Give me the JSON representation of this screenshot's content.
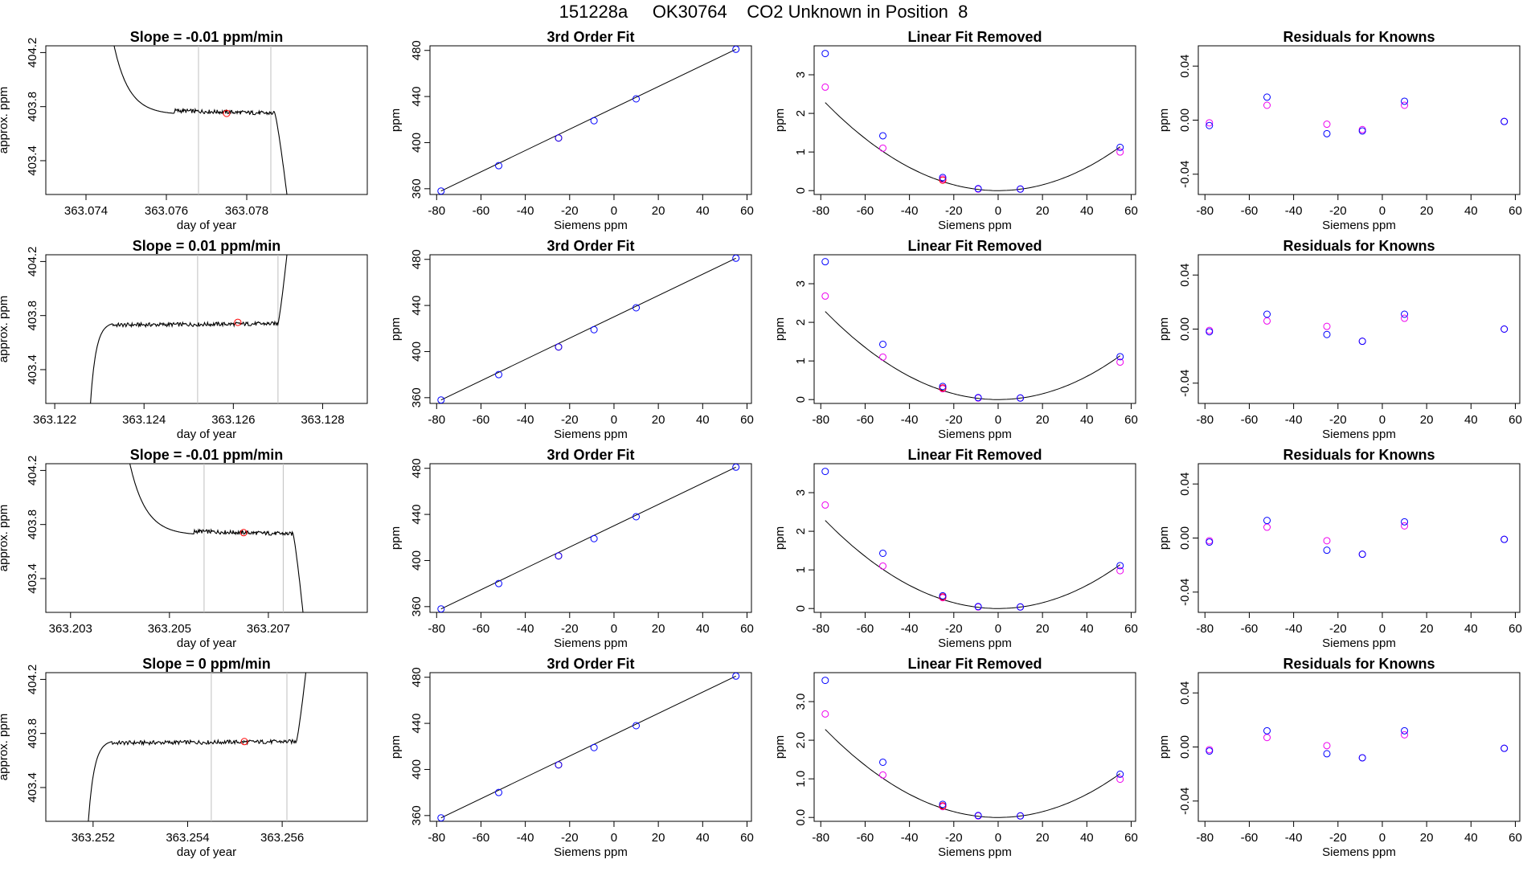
{
  "page_title": "151228a     OK30764    CO2 Unknown in Position  8",
  "colors": {
    "blue": "#0000ff",
    "magenta": "#ee00ee",
    "red": "#ff0000",
    "line": "#000000",
    "gray": "#bfbfbf"
  },
  "chart_data": [
    {
      "type": "line",
      "title": "Slope =  -0.01  ppm/min",
      "xlabel": "day of year",
      "ylabel": "approx. ppm",
      "xlim": [
        363.073,
        363.081
      ],
      "ylim": [
        403.15,
        404.25
      ],
      "xticks": [
        "363.074",
        "363.076",
        "363.078"
      ],
      "xtick_vals": [
        363.074,
        363.076,
        363.078
      ],
      "yticks": [
        "403.4",
        "403.8",
        "404.2"
      ],
      "ytick_vals": [
        403.4,
        403.8,
        404.2
      ],
      "vlines": [
        363.0768,
        363.0786
      ],
      "trace": {
        "t0": 363.0747,
        "t_flat": 363.0762,
        "t_end": 363.0787,
        "t_drop": 363.079,
        "start": 404.25,
        "plateau": 403.75,
        "end": 403.15,
        "direction": "down"
      },
      "marker": {
        "x": 363.0775,
        "y": 403.75
      }
    },
    {
      "type": "scatter",
      "title": "3rd Order Fit",
      "xlabel": "Siemens ppm",
      "ylabel": "ppm",
      "xlim": [
        -83,
        62
      ],
      "ylim": [
        355,
        484
      ],
      "xticks": [
        "-80",
        "-60",
        "-40",
        "-20",
        "0",
        "20",
        "40",
        "60"
      ],
      "xtick_vals": [
        -80,
        -60,
        -40,
        -20,
        0,
        20,
        40,
        60
      ],
      "yticks": [
        "360",
        "400",
        "440",
        "480"
      ],
      "ytick_vals": [
        360,
        400,
        440,
        480
      ],
      "points_blue": [
        [
          -78,
          358
        ],
        [
          -52,
          380
        ],
        [
          -25,
          404
        ],
        [
          -9,
          419
        ],
        [
          10,
          438
        ],
        [
          55,
          481
        ]
      ],
      "points_red": [
        [
          -25,
          404
        ]
      ],
      "fit_line": [
        [
          -78,
          358
        ],
        [
          55,
          481
        ]
      ]
    },
    {
      "type": "scatter",
      "title": "Linear Fit Removed",
      "xlabel": "Siemens ppm",
      "ylabel": "ppm",
      "xlim": [
        -83,
        62
      ],
      "ylim": [
        -0.1,
        3.75
      ],
      "xticks": [
        "-80",
        "-60",
        "-40",
        "-20",
        "0",
        "20",
        "40",
        "60"
      ],
      "xtick_vals": [
        -80,
        -60,
        -40,
        -20,
        0,
        20,
        40,
        60
      ],
      "yticks": [
        "0",
        "1",
        "2",
        "3"
      ],
      "ytick_vals": [
        0,
        1,
        2,
        3
      ],
      "points_blue": [
        [
          -78,
          3.55
        ],
        [
          -52,
          1.42
        ],
        [
          -25,
          0.34
        ],
        [
          -9,
          0.05
        ],
        [
          10,
          0.04
        ],
        [
          55,
          1.12
        ]
      ],
      "points_magenta": [
        [
          -78,
          2.68
        ],
        [
          -52,
          1.1
        ],
        [
          -25,
          0.3
        ],
        [
          -9,
          0.04
        ],
        [
          10,
          0.04
        ],
        [
          55,
          1.0
        ]
      ],
      "points_red": [
        [
          -25,
          0.27
        ]
      ],
      "quad_coef": 0.000375
    },
    {
      "type": "scatter",
      "title": "Residuals for Knowns",
      "xlabel": "Siemens ppm",
      "ylabel": "ppm",
      "xlim": [
        -83,
        62
      ],
      "ylim": [
        -0.055,
        0.055
      ],
      "xticks": [
        "-80",
        "-60",
        "-40",
        "-20",
        "0",
        "20",
        "40",
        "60"
      ],
      "xtick_vals": [
        -80,
        -60,
        -40,
        -20,
        0,
        20,
        40,
        60
      ],
      "yticks": [
        "-0.04",
        "0.00",
        "0.04"
      ],
      "ytick_vals": [
        -0.04,
        0.0,
        0.04
      ],
      "points_blue": [
        [
          -78,
          -0.004
        ],
        [
          -52,
          0.017
        ],
        [
          -25,
          -0.01
        ],
        [
          -9,
          -0.008
        ],
        [
          10,
          0.014
        ],
        [
          55,
          -0.001
        ]
      ],
      "points_magenta": [
        [
          -78,
          -0.002
        ],
        [
          -52,
          0.011
        ],
        [
          -25,
          -0.003
        ],
        [
          -9,
          -0.007
        ],
        [
          10,
          0.011
        ],
        [
          55,
          -0.001
        ]
      ]
    },
    {
      "type": "line",
      "title": "Slope =  0.01  ppm/min",
      "xlabel": "day of year",
      "ylabel": "approx. ppm",
      "xlim": [
        363.1218,
        363.129
      ],
      "ylim": [
        403.15,
        404.25
      ],
      "xticks": [
        "363.122",
        "363.124",
        "363.126",
        "363.128"
      ],
      "xtick_vals": [
        363.122,
        363.124,
        363.126,
        363.128
      ],
      "yticks": [
        "403.4",
        "403.8",
        "404.2"
      ],
      "ytick_vals": [
        403.4,
        403.8,
        404.2
      ],
      "vlines": [
        363.1252,
        363.127
      ],
      "trace": {
        "t0": 363.1228,
        "t_flat": 363.1233,
        "t_end": 363.127,
        "t_drop": 363.1272,
        "start": 403.15,
        "plateau": 403.74,
        "end": 404.25,
        "direction": "up"
      },
      "marker": {
        "x": 363.1261,
        "y": 403.75
      }
    },
    {
      "type": "scatter",
      "title": "3rd Order Fit",
      "xlabel": "Siemens ppm",
      "ylabel": "ppm",
      "xlim": [
        -83,
        62
      ],
      "ylim": [
        355,
        484
      ],
      "xticks": [
        "-80",
        "-60",
        "-40",
        "-20",
        "0",
        "20",
        "40",
        "60"
      ],
      "xtick_vals": [
        -80,
        -60,
        -40,
        -20,
        0,
        20,
        40,
        60
      ],
      "yticks": [
        "360",
        "400",
        "440",
        "480"
      ],
      "ytick_vals": [
        360,
        400,
        440,
        480
      ],
      "points_blue": [
        [
          -78,
          358
        ],
        [
          -52,
          380
        ],
        [
          -25,
          404
        ],
        [
          -9,
          419
        ],
        [
          10,
          438
        ],
        [
          55,
          481
        ]
      ],
      "points_red": [
        [
          -25,
          404
        ]
      ],
      "fit_line": [
        [
          -78,
          358
        ],
        [
          55,
          481
        ]
      ]
    },
    {
      "type": "scatter",
      "title": "Linear Fit Removed",
      "xlabel": "Siemens ppm",
      "ylabel": "ppm",
      "xlim": [
        -83,
        62
      ],
      "ylim": [
        -0.1,
        3.75
      ],
      "xticks": [
        "-80",
        "-60",
        "-40",
        "-20",
        "0",
        "20",
        "40",
        "60"
      ],
      "xtick_vals": [
        -80,
        -60,
        -40,
        -20,
        0,
        20,
        40,
        60
      ],
      "yticks": [
        "0",
        "1",
        "2",
        "3"
      ],
      "ytick_vals": [
        0,
        1,
        2,
        3
      ],
      "points_blue": [
        [
          -78,
          3.57
        ],
        [
          -52,
          1.43
        ],
        [
          -25,
          0.34
        ],
        [
          -9,
          0.05
        ],
        [
          10,
          0.04
        ],
        [
          55,
          1.11
        ]
      ],
      "points_magenta": [
        [
          -78,
          2.68
        ],
        [
          -52,
          1.1
        ],
        [
          -25,
          0.28
        ],
        [
          -9,
          0.04
        ],
        [
          10,
          0.04
        ],
        [
          55,
          0.97
        ]
      ],
      "points_red": [
        [
          -25,
          0.3
        ]
      ],
      "quad_coef": 0.000375
    },
    {
      "type": "scatter",
      "title": "Residuals for Knowns",
      "xlabel": "Siemens ppm",
      "ylabel": "ppm",
      "xlim": [
        -83,
        62
      ],
      "ylim": [
        -0.055,
        0.055
      ],
      "xticks": [
        "-80",
        "-60",
        "-40",
        "-20",
        "0",
        "20",
        "40",
        "60"
      ],
      "xtick_vals": [
        -80,
        -60,
        -40,
        -20,
        0,
        20,
        40,
        60
      ],
      "yticks": [
        "-0.04",
        "0.00",
        "0.04"
      ],
      "ytick_vals": [
        -0.04,
        0.0,
        0.04
      ],
      "points_blue": [
        [
          -78,
          -0.002
        ],
        [
          -52,
          0.011
        ],
        [
          -25,
          -0.004
        ],
        [
          -9,
          -0.009
        ],
        [
          10,
          0.011
        ],
        [
          55,
          0.0
        ]
      ],
      "points_magenta": [
        [
          -78,
          -0.001
        ],
        [
          -52,
          0.006
        ],
        [
          -25,
          0.002
        ],
        [
          -9,
          -0.009
        ],
        [
          10,
          0.008
        ],
        [
          55,
          0.0
        ]
      ]
    },
    {
      "type": "line",
      "title": "Slope =  -0.01  ppm/min",
      "xlabel": "day of year",
      "ylabel": "approx. ppm",
      "xlim": [
        363.2025,
        363.209
      ],
      "ylim": [
        403.15,
        404.25
      ],
      "xticks": [
        "363.203",
        "363.205",
        "363.207"
      ],
      "xtick_vals": [
        363.203,
        363.205,
        363.207
      ],
      "yticks": [
        "403.4",
        "403.8",
        "404.2"
      ],
      "ytick_vals": [
        403.4,
        403.8,
        404.2
      ],
      "vlines": [
        363.2057,
        363.2073
      ],
      "trace": {
        "t0": 363.2042,
        "t_flat": 363.2055,
        "t_end": 363.2075,
        "t_drop": 363.2077,
        "start": 404.25,
        "plateau": 403.73,
        "end": 403.15,
        "direction": "down"
      },
      "marker": {
        "x": 363.2065,
        "y": 403.74
      }
    },
    {
      "type": "scatter",
      "title": "3rd Order Fit",
      "xlabel": "Siemens ppm",
      "ylabel": "ppm",
      "xlim": [
        -83,
        62
      ],
      "ylim": [
        355,
        484
      ],
      "xticks": [
        "-80",
        "-60",
        "-40",
        "-20",
        "0",
        "20",
        "40",
        "60"
      ],
      "xtick_vals": [
        -80,
        -60,
        -40,
        -20,
        0,
        20,
        40,
        60
      ],
      "yticks": [
        "360",
        "400",
        "440",
        "480"
      ],
      "ytick_vals": [
        360,
        400,
        440,
        480
      ],
      "points_blue": [
        [
          -78,
          358
        ],
        [
          -52,
          380
        ],
        [
          -25,
          404
        ],
        [
          -9,
          419
        ],
        [
          10,
          438
        ],
        [
          55,
          481
        ]
      ],
      "points_red": [
        [
          -25,
          404
        ]
      ],
      "fit_line": [
        [
          -78,
          358
        ],
        [
          55,
          481
        ]
      ]
    },
    {
      "type": "scatter",
      "title": "Linear Fit Removed",
      "xlabel": "Siemens ppm",
      "ylabel": "ppm",
      "xlim": [
        -83,
        62
      ],
      "ylim": [
        -0.1,
        3.75
      ],
      "xticks": [
        "-80",
        "-60",
        "-40",
        "-20",
        "0",
        "20",
        "40",
        "60"
      ],
      "xtick_vals": [
        -80,
        -60,
        -40,
        -20,
        0,
        20,
        40,
        60
      ],
      "yticks": [
        "0",
        "1",
        "2",
        "3"
      ],
      "ytick_vals": [
        0,
        1,
        2,
        3
      ],
      "points_blue": [
        [
          -78,
          3.55
        ],
        [
          -52,
          1.43
        ],
        [
          -25,
          0.33
        ],
        [
          -9,
          0.05
        ],
        [
          10,
          0.04
        ],
        [
          55,
          1.11
        ]
      ],
      "points_magenta": [
        [
          -78,
          2.68
        ],
        [
          -52,
          1.1
        ],
        [
          -25,
          0.28
        ],
        [
          -9,
          0.04
        ],
        [
          10,
          0.04
        ],
        [
          55,
          0.98
        ]
      ],
      "points_red": [
        [
          -25,
          0.3
        ]
      ],
      "quad_coef": 0.000375
    },
    {
      "type": "scatter",
      "title": "Residuals for Knowns",
      "xlabel": "Siemens ppm",
      "ylabel": "ppm",
      "xlim": [
        -83,
        62
      ],
      "ylim": [
        -0.055,
        0.055
      ],
      "xticks": [
        "-80",
        "-60",
        "-40",
        "-20",
        "0",
        "20",
        "40",
        "60"
      ],
      "xtick_vals": [
        -80,
        -60,
        -40,
        -20,
        0,
        20,
        40,
        60
      ],
      "yticks": [
        "-0.04",
        "0.00",
        "0.04"
      ],
      "ytick_vals": [
        -0.04,
        0.0,
        0.04
      ],
      "points_blue": [
        [
          -78,
          -0.003
        ],
        [
          -52,
          0.013
        ],
        [
          -25,
          -0.009
        ],
        [
          -9,
          -0.012
        ],
        [
          10,
          0.012
        ],
        [
          55,
          -0.001
        ]
      ],
      "points_magenta": [
        [
          -78,
          -0.002
        ],
        [
          -52,
          0.008
        ],
        [
          -25,
          -0.002
        ],
        [
          -9,
          -0.012
        ],
        [
          10,
          0.009
        ],
        [
          55,
          -0.001
        ]
      ]
    },
    {
      "type": "line",
      "title": "Slope =  0  ppm/min",
      "xlabel": "day of year",
      "ylabel": "approx. ppm",
      "xlim": [
        363.251,
        363.2578
      ],
      "ylim": [
        403.15,
        404.25
      ],
      "xticks": [
        "363.252",
        "363.254",
        "363.256"
      ],
      "xtick_vals": [
        363.252,
        363.254,
        363.256
      ],
      "yticks": [
        "403.4",
        "403.8",
        "404.2"
      ],
      "ytick_vals": [
        403.4,
        403.8,
        404.2
      ],
      "vlines": [
        363.2545,
        363.2561
      ],
      "trace": {
        "t0": 363.2519,
        "t_flat": 363.2524,
        "t_end": 363.2563,
        "t_drop": 363.2565,
        "start": 403.15,
        "plateau": 403.74,
        "end": 404.25,
        "direction": "up"
      },
      "marker": {
        "x": 363.2552,
        "y": 403.74
      }
    },
    {
      "type": "scatter",
      "title": "3rd Order Fit",
      "xlabel": "Siemens ppm",
      "ylabel": "ppm",
      "xlim": [
        -83,
        62
      ],
      "ylim": [
        355,
        484
      ],
      "xticks": [
        "-80",
        "-60",
        "-40",
        "-20",
        "0",
        "20",
        "40",
        "60"
      ],
      "xtick_vals": [
        -80,
        -60,
        -40,
        -20,
        0,
        20,
        40,
        60
      ],
      "yticks": [
        "360",
        "400",
        "440",
        "480"
      ],
      "ytick_vals": [
        360,
        400,
        440,
        480
      ],
      "points_blue": [
        [
          -78,
          358
        ],
        [
          -52,
          380
        ],
        [
          -25,
          404
        ],
        [
          -9,
          419
        ],
        [
          10,
          438
        ],
        [
          55,
          481
        ]
      ],
      "points_red": [
        [
          -25,
          404
        ]
      ],
      "fit_line": [
        [
          -78,
          358
        ],
        [
          55,
          481
        ]
      ]
    },
    {
      "type": "scatter",
      "title": "Linear Fit Removed",
      "xlabel": "Siemens ppm",
      "ylabel": "ppm",
      "xlim": [
        -83,
        62
      ],
      "ylim": [
        -0.1,
        3.75
      ],
      "xticks": [
        "-80",
        "-60",
        "-40",
        "-20",
        "0",
        "20",
        "40",
        "60"
      ],
      "xtick_vals": [
        -80,
        -60,
        -40,
        -20,
        0,
        20,
        40,
        60
      ],
      "yticks": [
        "0.0",
        "1.0",
        "2.0",
        "3.0"
      ],
      "ytick_vals": [
        0,
        1,
        2,
        3
      ],
      "points_blue": [
        [
          -78,
          3.55
        ],
        [
          -52,
          1.43
        ],
        [
          -25,
          0.34
        ],
        [
          -9,
          0.05
        ],
        [
          10,
          0.04
        ],
        [
          55,
          1.12
        ]
      ],
      "points_magenta": [
        [
          -78,
          2.68
        ],
        [
          -52,
          1.1
        ],
        [
          -25,
          0.28
        ],
        [
          -9,
          0.04
        ],
        [
          10,
          0.04
        ],
        [
          55,
          0.99
        ]
      ],
      "points_red": [
        [
          -25,
          0.3
        ]
      ],
      "quad_coef": 0.000375
    },
    {
      "type": "scatter",
      "title": "Residuals for Knowns",
      "xlabel": "Siemens ppm",
      "ylabel": "ppm",
      "xlim": [
        -83,
        62
      ],
      "ylim": [
        -0.055,
        0.055
      ],
      "xticks": [
        "-80",
        "-60",
        "-40",
        "-20",
        "0",
        "20",
        "40",
        "60"
      ],
      "xtick_vals": [
        -80,
        -60,
        -40,
        -20,
        0,
        20,
        40,
        60
      ],
      "yticks": [
        "-0.04",
        "0.00",
        "0.04"
      ],
      "ytick_vals": [
        -0.04,
        0.0,
        0.04
      ],
      "points_blue": [
        [
          -78,
          -0.003
        ],
        [
          -52,
          0.012
        ],
        [
          -25,
          -0.005
        ],
        [
          -9,
          -0.008
        ],
        [
          10,
          0.012
        ],
        [
          55,
          -0.001
        ]
      ],
      "points_magenta": [
        [
          -78,
          -0.002
        ],
        [
          -52,
          0.007
        ],
        [
          -25,
          0.001
        ],
        [
          -9,
          -0.008
        ],
        [
          10,
          0.009
        ],
        [
          55,
          -0.001
        ]
      ]
    }
  ]
}
